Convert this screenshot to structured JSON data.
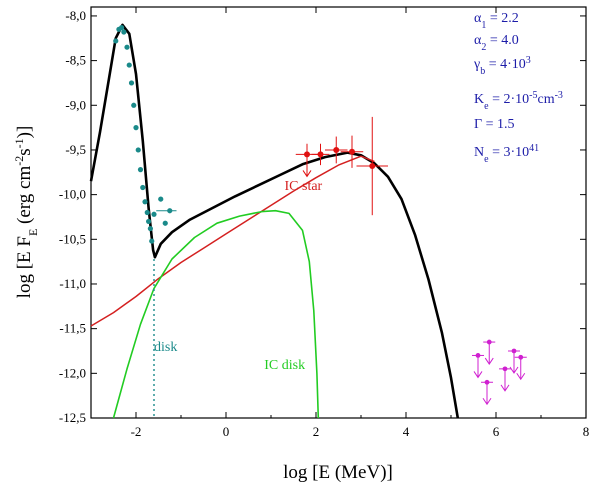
{
  "chart_data": {
    "type": "line",
    "xlabel": "log [E (MeV)]",
    "ylabel_parts": {
      "pre": "log [E F",
      "sub": "E",
      "units": " (erg cm",
      "e1": "-2",
      "mid": "s",
      "e2": "-1",
      "post": ")]"
    },
    "xlim": [
      -3,
      8
    ],
    "ylim": [
      -12.5,
      -7.9
    ],
    "x_ticks": [
      -2,
      0,
      2,
      4,
      6,
      8
    ],
    "x_tick_labels": [
      "-2",
      "0",
      "2",
      "4",
      "6",
      "8"
    ],
    "y_ticks": [
      -8.0,
      -8.5,
      -9.0,
      -9.5,
      -10.0,
      -10.5,
      -11.0,
      -11.5,
      -12.0,
      -12.5
    ],
    "y_tick_labels": [
      "-8,0",
      "-8,5",
      "-9,0",
      "-9,5",
      "-10,0",
      "-10,5",
      "-11,0",
      "-11,5",
      "-12,0",
      "-12,5"
    ],
    "colors": {
      "total": "#000000",
      "ic_star": "#d42020",
      "ic_disk": "#22cc22",
      "disk": "#1a8a8a",
      "data_red": "#e01010",
      "upper_limits": "#d020d0",
      "params": "#1c1ca8"
    },
    "series": [
      {
        "name": "total",
        "points": [
          [
            -3.0,
            -9.85
          ],
          [
            -2.8,
            -9.3
          ],
          [
            -2.6,
            -8.7
          ],
          [
            -2.45,
            -8.25
          ],
          [
            -2.3,
            -8.1
          ],
          [
            -2.15,
            -8.2
          ],
          [
            -2.0,
            -8.65
          ],
          [
            -1.85,
            -9.4
          ],
          [
            -1.72,
            -10.15
          ],
          [
            -1.62,
            -10.62
          ],
          [
            -1.58,
            -10.7
          ],
          [
            -1.45,
            -10.55
          ],
          [
            -1.2,
            -10.42
          ],
          [
            -0.8,
            -10.28
          ],
          [
            -0.3,
            -10.15
          ],
          [
            0.2,
            -10.02
          ],
          [
            0.7,
            -9.9
          ],
          [
            1.2,
            -9.78
          ],
          [
            1.7,
            -9.66
          ],
          [
            2.2,
            -9.58
          ],
          [
            2.7,
            -9.53
          ],
          [
            3.0,
            -9.56
          ],
          [
            3.3,
            -9.65
          ],
          [
            3.6,
            -9.8
          ],
          [
            3.9,
            -10.05
          ],
          [
            4.2,
            -10.45
          ],
          [
            4.5,
            -10.95
          ],
          [
            4.8,
            -11.55
          ],
          [
            5.0,
            -12.05
          ],
          [
            5.15,
            -12.5
          ]
        ]
      },
      {
        "name": "IC star",
        "points": [
          [
            -3.0,
            -11.47
          ],
          [
            -2.5,
            -11.32
          ],
          [
            -2.0,
            -11.14
          ],
          [
            -1.5,
            -10.94
          ],
          [
            -1.0,
            -10.76
          ],
          [
            -0.5,
            -10.6
          ],
          [
            0.0,
            -10.44
          ],
          [
            0.5,
            -10.28
          ],
          [
            1.0,
            -10.12
          ],
          [
            1.5,
            -9.96
          ],
          [
            2.0,
            -9.81
          ],
          [
            2.5,
            -9.67
          ],
          [
            3.0,
            -9.57
          ],
          [
            3.3,
            -9.63
          ]
        ]
      },
      {
        "name": "IC disk",
        "points": [
          [
            -2.5,
            -12.5
          ],
          [
            -2.2,
            -11.95
          ],
          [
            -1.9,
            -11.45
          ],
          [
            -1.6,
            -11.05
          ],
          [
            -1.2,
            -10.72
          ],
          [
            -0.7,
            -10.48
          ],
          [
            -0.2,
            -10.32
          ],
          [
            0.3,
            -10.24
          ],
          [
            0.8,
            -10.19
          ],
          [
            1.1,
            -10.18
          ],
          [
            1.4,
            -10.21
          ],
          [
            1.7,
            -10.4
          ],
          [
            1.85,
            -10.75
          ],
          [
            1.95,
            -11.3
          ],
          [
            2.02,
            -12.0
          ],
          [
            2.05,
            -12.5
          ]
        ]
      },
      {
        "name": "disk",
        "style": "dotted",
        "points": [
          [
            -1.6,
            -10.72
          ],
          [
            -1.6,
            -12.5
          ]
        ]
      }
    ],
    "teal_points": [
      [
        -2.45,
        -8.28
      ],
      [
        -2.38,
        -8.15
      ],
      [
        -2.32,
        -8.13
      ],
      [
        -2.27,
        -8.18
      ],
      [
        -2.2,
        -8.35
      ],
      [
        -2.15,
        -8.55
      ],
      [
        -2.1,
        -8.75
      ],
      [
        -2.05,
        -9.0
      ],
      [
        -2.0,
        -9.25
      ],
      [
        -1.95,
        -9.5
      ],
      [
        -1.9,
        -9.72
      ],
      [
        -1.85,
        -9.92
      ],
      [
        -1.8,
        -10.08
      ],
      [
        -1.75,
        -10.2
      ],
      [
        -1.72,
        -10.3
      ],
      [
        -1.68,
        -10.38
      ],
      [
        -1.65,
        -10.52
      ],
      [
        -1.6,
        -10.22
      ],
      [
        -1.45,
        -10.05
      ],
      [
        -1.35,
        -10.32
      ],
      [
        -1.25,
        -10.18
      ]
    ],
    "red_points": [
      {
        "x": 1.8,
        "y": -9.55,
        "xerr": 0.25,
        "yerr": 0.12,
        "upper_limit": true
      },
      {
        "x": 2.1,
        "y": -9.55,
        "xerr": 0.2,
        "yerr": 0.12,
        "upper_limit": false
      },
      {
        "x": 2.45,
        "y": -9.5,
        "xerr": 0.25,
        "yerr": 0.15,
        "upper_limit": false
      },
      {
        "x": 2.8,
        "y": -9.52,
        "xerr": 0.25,
        "yerr": 0.18,
        "upper_limit": false
      },
      {
        "x": 3.25,
        "y": -9.68,
        "xerr": 0.35,
        "yerr": 0.55,
        "upper_limit": false
      }
    ],
    "upper_limits": [
      [
        5.6,
        -11.8
      ],
      [
        5.85,
        -11.65
      ],
      [
        5.8,
        -12.1
      ],
      [
        6.2,
        -11.95
      ],
      [
        6.4,
        -11.75
      ],
      [
        6.55,
        -11.82
      ]
    ],
    "annotations": [
      {
        "text": "IC star",
        "x": 1.3,
        "y": -9.95,
        "color": "#d42020"
      },
      {
        "text": "IC disk",
        "x": 0.85,
        "y": -11.95,
        "color": "#22cc22"
      },
      {
        "text": "disk",
        "x": -1.6,
        "y": -11.75,
        "color": "#1a8a8a"
      }
    ]
  },
  "params": {
    "line1": {
      "sym": "α",
      "sub": "1",
      "val": " = 2.2"
    },
    "line2": {
      "sym": "α",
      "sub": "2",
      "val": " = 4.0"
    },
    "line3": {
      "sym": "γ",
      "sub": "b",
      "val": " = 4·10",
      "sup": "3"
    },
    "line4": {
      "sym": "K",
      "sub": "e",
      "val": " = 2·10",
      "sup": "-5",
      "unit": "cm",
      "sup2": "-3"
    },
    "line5": {
      "sym": "Γ",
      "val": " = 1.5"
    },
    "line6": {
      "sym": "N",
      "sub": "e",
      "val": " = 3·10",
      "sup": "41"
    }
  }
}
